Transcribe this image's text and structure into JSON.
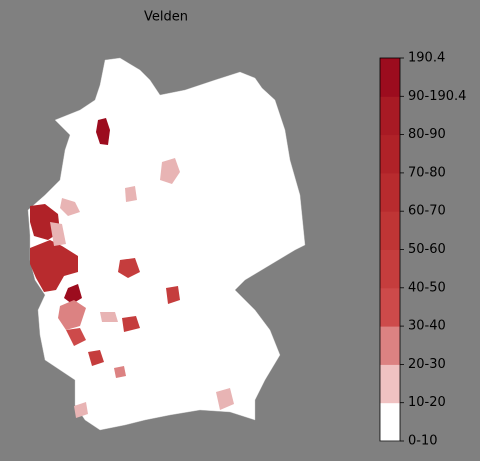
{
  "title": "Velden",
  "colorbar": {
    "ticks": [
      "0-10",
      "10-20",
      "20-30",
      "30-40",
      "40-50",
      "50-60",
      "60-70",
      "70-80",
      "80-90",
      "90-190.4",
      "190.4"
    ],
    "colors": [
      "#ffffff",
      "#f0c2c2",
      "#dc8282",
      "#cd4a4a",
      "#c53d3d",
      "#bf3535",
      "#b82b2e",
      "#b02228",
      "#a81a24",
      "#9c0c1e"
    ]
  }
}
